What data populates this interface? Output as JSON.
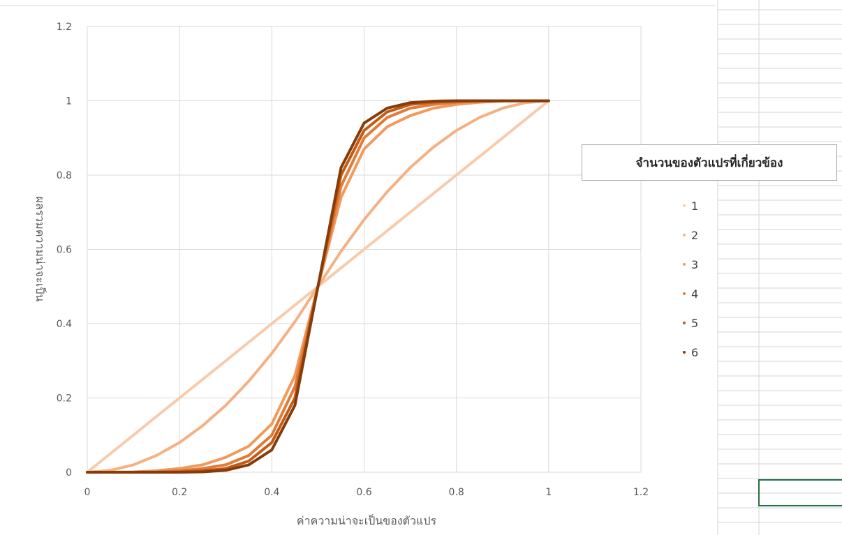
{
  "chart_data": {
    "type": "line",
    "title": "",
    "xlabel": "ค่าความน่าจะเป็นของตัวแปร",
    "ylabel": "ผลรวมความน่าจะเป็น",
    "xlim": [
      0,
      1.2
    ],
    "ylim": [
      0,
      1.2
    ],
    "x_ticks": [
      "0",
      "0.2",
      "0.4",
      "0.6",
      "0.8",
      "1",
      "1.2"
    ],
    "y_ticks": [
      "0",
      "0.2",
      "0.4",
      "0.6",
      "0.8",
      "1",
      "1.2"
    ],
    "grid": true,
    "legend_title": "จำนวนของตัวแปรที่เกี่ยวข้อง",
    "legend_position": "right",
    "x": [
      0,
      0.05,
      0.1,
      0.15,
      0.2,
      0.25,
      0.3,
      0.35,
      0.4,
      0.45,
      0.5,
      0.55,
      0.6,
      0.65,
      0.7,
      0.75,
      0.8,
      0.85,
      0.9,
      0.95,
      1
    ],
    "series": [
      {
        "name": "1",
        "color": "#f8cbad",
        "values": [
          0,
          0.05,
          0.1,
          0.15,
          0.2,
          0.25,
          0.3,
          0.35,
          0.4,
          0.45,
          0.5,
          0.55,
          0.6,
          0.65,
          0.7,
          0.75,
          0.8,
          0.85,
          0.9,
          0.95,
          1
        ]
      },
      {
        "name": "2",
        "color": "#f4b183",
        "values": [
          0,
          0.005,
          0.02,
          0.045,
          0.08,
          0.125,
          0.18,
          0.245,
          0.32,
          0.405,
          0.5,
          0.595,
          0.68,
          0.755,
          0.82,
          0.875,
          0.92,
          0.955,
          0.98,
          0.995,
          1
        ]
      },
      {
        "name": "3",
        "color": "#f09a5e",
        "values": [
          0,
          0.0001,
          0.001,
          0.004,
          0.01,
          0.02,
          0.04,
          0.07,
          0.13,
          0.26,
          0.5,
          0.74,
          0.87,
          0.93,
          0.96,
          0.98,
          0.99,
          0.996,
          0.999,
          0.9999,
          1
        ]
      },
      {
        "name": "4",
        "color": "#e07b39",
        "values": [
          0,
          0,
          0,
          0.001,
          0.004,
          0.01,
          0.02,
          0.045,
          0.1,
          0.23,
          0.5,
          0.77,
          0.9,
          0.955,
          0.98,
          0.99,
          0.996,
          0.999,
          1,
          1,
          1
        ]
      },
      {
        "name": "5",
        "color": "#c55a11",
        "values": [
          0,
          0,
          0,
          0,
          0.001,
          0.004,
          0.01,
          0.03,
          0.08,
          0.2,
          0.5,
          0.8,
          0.92,
          0.97,
          0.99,
          0.996,
          0.999,
          1,
          1,
          1,
          1
        ]
      },
      {
        "name": "6",
        "color": "#843c0c",
        "values": [
          0,
          0,
          0,
          0,
          0,
          0.001,
          0.005,
          0.02,
          0.06,
          0.18,
          0.5,
          0.82,
          0.94,
          0.98,
          0.995,
          0.999,
          1,
          1,
          1,
          1,
          1
        ]
      }
    ]
  }
}
